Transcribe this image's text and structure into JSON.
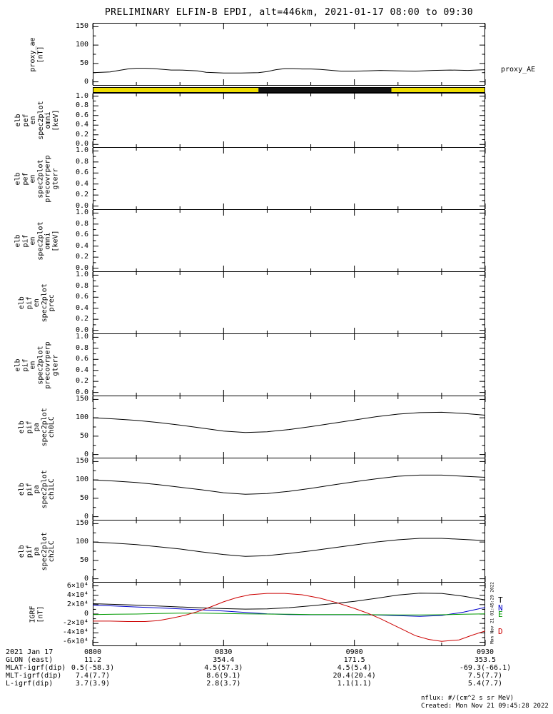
{
  "footer": {
    "units_note": "nflux: #/(cm^2 s sr MeV)",
    "created": "Created: Mon Nov 21 09:45:28 2022",
    "side_timestamp": "Mon Nov 21 01:45:29 2022"
  },
  "colors": {
    "background": "#ffffff",
    "axis": "#000000",
    "orbit_yellow": "#eedd00",
    "orbit_black": "#111111",
    "trace_T": "#000000",
    "trace_N": "#0000cc",
    "trace_E": "#009900",
    "trace_D": "#cc0000"
  },
  "chart_data": {
    "type": "line",
    "title": "PRELIMINARY ELFIN-B EPDI, alt=446km, 2021-01-17 08:00 to 09:30",
    "x_range_minutes": [
      0,
      90
    ],
    "time_ticks": {
      "labels": [
        "0800",
        "0830",
        "0900",
        "0930"
      ],
      "minutes": [
        0,
        30,
        60,
        90
      ],
      "date": "2021 Jan 17"
    },
    "panels": [
      {
        "id": "proxy_ae",
        "kind": "line",
        "ylabel_lines": [
          "proxy_ae",
          "[nT]"
        ],
        "right_label": "proxy_AE",
        "yrange": [
          0,
          150
        ],
        "yticks": [
          {
            "v": 0,
            "t": "0"
          },
          {
            "v": 50,
            "t": "50"
          },
          {
            "v": 100,
            "t": "100"
          },
          {
            "v": 150,
            "t": "150"
          }
        ],
        "series": [
          {
            "name": "proxy_AE",
            "color": "#000000",
            "x": [
              0,
              2,
              4,
              6,
              8,
              10,
              12,
              14,
              16,
              18,
              20,
              22,
              24,
              26,
              28,
              30,
              34,
              38,
              40,
              42,
              44,
              46,
              48,
              50,
              52,
              54,
              57,
              60,
              63,
              66,
              70,
              74,
              78,
              82,
              86,
              90
            ],
            "y": [
              25,
              26,
              27,
              31,
              35,
              37,
              37,
              36,
              34,
              32,
              32,
              31,
              30,
              26,
              25,
              24,
              24,
              25,
              28,
              33,
              36,
              36,
              35,
              35,
              34,
              32,
              29,
              29,
              30,
              31,
              30,
              29,
              31,
              32,
              31,
              33
            ]
          }
        ]
      },
      {
        "id": "position_bar",
        "kind": "strip",
        "segments": [
          {
            "start_min": 0,
            "end_min": 38,
            "color": "#eedd00"
          },
          {
            "start_min": 38,
            "end_min": 68.5,
            "color": "#111111"
          },
          {
            "start_min": 68.5,
            "end_min": 90,
            "color": "#eedd00"
          }
        ]
      },
      {
        "id": "pef_en_omni",
        "kind": "line",
        "ylabel_lines": [
          "elb",
          "pef",
          "en",
          "spec2plot",
          "omni",
          "[keV]"
        ],
        "yrange": [
          0,
          1
        ],
        "yticks": [
          {
            "v": 0,
            "t": "0.0"
          },
          {
            "v": 0.2,
            "t": "0.2"
          },
          {
            "v": 0.4,
            "t": "0.4"
          },
          {
            "v": 0.6,
            "t": "0.6"
          },
          {
            "v": 0.8,
            "t": "0.8"
          },
          {
            "v": 1,
            "t": "1.0"
          }
        ],
        "series": []
      },
      {
        "id": "pef_en_precovrperp_gterr",
        "kind": "line",
        "ylabel_lines": [
          "elb",
          "pef",
          "en",
          "spec2plot",
          "precovrperp",
          "gterr"
        ],
        "yrange": [
          0,
          1
        ],
        "yticks": [
          {
            "v": 0,
            "t": "0.0"
          },
          {
            "v": 0.2,
            "t": "0.2"
          },
          {
            "v": 0.4,
            "t": "0.4"
          },
          {
            "v": 0.6,
            "t": "0.6"
          },
          {
            "v": 0.8,
            "t": "0.8"
          },
          {
            "v": 1,
            "t": "1.0"
          }
        ],
        "series": []
      },
      {
        "id": "pif_en_omni",
        "kind": "line",
        "ylabel_lines": [
          "elb",
          "pif",
          "en",
          "spec2plot",
          "omni",
          "[keV]"
        ],
        "yrange": [
          0,
          1
        ],
        "yticks": [
          {
            "v": 0,
            "t": "0.0"
          },
          {
            "v": 0.2,
            "t": "0.2"
          },
          {
            "v": 0.4,
            "t": "0.4"
          },
          {
            "v": 0.6,
            "t": "0.6"
          },
          {
            "v": 0.8,
            "t": "0.8"
          },
          {
            "v": 1,
            "t": "1.0"
          }
        ],
        "series": []
      },
      {
        "id": "pif_en_prec",
        "kind": "line",
        "ylabel_lines": [
          "elb",
          "pif",
          "en",
          "spec2plot",
          "prec"
        ],
        "yrange": [
          0,
          1
        ],
        "yticks": [
          {
            "v": 0,
            "t": "0.0"
          },
          {
            "v": 0.2,
            "t": "0.2"
          },
          {
            "v": 0.4,
            "t": "0.4"
          },
          {
            "v": 0.6,
            "t": "0.6"
          },
          {
            "v": 0.8,
            "t": "0.8"
          },
          {
            "v": 1,
            "t": "1.0"
          }
        ],
        "series": []
      },
      {
        "id": "pif_en_precovrperp_gterr",
        "kind": "line",
        "ylabel_lines": [
          "elb",
          "pif",
          "en",
          "spec2plot",
          "precovrperp",
          "gterr"
        ],
        "yrange": [
          0,
          1
        ],
        "yticks": [
          {
            "v": 0,
            "t": "0.0"
          },
          {
            "v": 0.2,
            "t": "0.2"
          },
          {
            "v": 0.4,
            "t": "0.4"
          },
          {
            "v": 0.6,
            "t": "0.6"
          },
          {
            "v": 0.8,
            "t": "0.8"
          },
          {
            "v": 1,
            "t": "1.0"
          }
        ],
        "series": []
      },
      {
        "id": "pif_pa_ch0lc",
        "kind": "line",
        "ylabel_lines": [
          "elb",
          "pif",
          "pa",
          "spec2plot",
          "ch0LC"
        ],
        "yrange": [
          0,
          150
        ],
        "yticks": [
          {
            "v": 0,
            "t": "0"
          },
          {
            "v": 50,
            "t": "50"
          },
          {
            "v": 100,
            "t": "100"
          },
          {
            "v": 150,
            "t": "150"
          }
        ],
        "series": [
          {
            "name": "ch0LC",
            "color": "#000000",
            "x": [
              0,
              5,
              10,
              15,
              20,
              25,
              30,
              35,
              40,
              45,
              50,
              55,
              60,
              65,
              70,
              75,
              80,
              85,
              90
            ],
            "y": [
              100,
              97,
              93,
              87,
              80,
              72,
              64,
              60,
              62,
              68,
              76,
              85,
              94,
              103,
              110,
              114,
              115,
              112,
              107
            ]
          }
        ]
      },
      {
        "id": "pif_pa_ch1lc",
        "kind": "line",
        "ylabel_lines": [
          "elb",
          "pif",
          "pa",
          "spec2plot",
          "ch1LC"
        ],
        "yrange": [
          0,
          150
        ],
        "yticks": [
          {
            "v": 0,
            "t": "0"
          },
          {
            "v": 50,
            "t": "50"
          },
          {
            "v": 100,
            "t": "100"
          },
          {
            "v": 150,
            "t": "150"
          }
        ],
        "series": [
          {
            "name": "ch1LC",
            "color": "#000000",
            "x": [
              0,
              5,
              10,
              15,
              20,
              25,
              30,
              35,
              40,
              45,
              50,
              55,
              60,
              65,
              70,
              75,
              80,
              85,
              90
            ],
            "y": [
              100,
              97,
              93,
              87,
              80,
              73,
              65,
              61,
              63,
              69,
              77,
              86,
              95,
              103,
              110,
              113,
              113,
              110,
              107
            ]
          }
        ]
      },
      {
        "id": "pif_pa_ch2lc",
        "kind": "line",
        "ylabel_lines": [
          "elb",
          "pif",
          "pa",
          "spec2plot",
          "ch2LC"
        ],
        "yrange": [
          0,
          150
        ],
        "yticks": [
          {
            "v": 0,
            "t": "0"
          },
          {
            "v": 50,
            "t": "50"
          },
          {
            "v": 100,
            "t": "100"
          },
          {
            "v": 150,
            "t": "150"
          }
        ],
        "series": [
          {
            "name": "ch2LC",
            "color": "#000000",
            "x": [
              0,
              5,
              10,
              15,
              20,
              25,
              30,
              35,
              40,
              45,
              50,
              55,
              60,
              65,
              70,
              75,
              80,
              85,
              90
            ],
            "y": [
              100,
              97,
              93,
              87,
              81,
              73,
              66,
              61,
              63,
              69,
              76,
              84,
              92,
              100,
              106,
              110,
              110,
              107,
              104
            ]
          }
        ]
      },
      {
        "id": "igrf",
        "kind": "line",
        "ylabel_lines": [
          "IGRF",
          "[nT]"
        ],
        "yrange": [
          -60000,
          60000
        ],
        "yticks": [
          {
            "v": -60000,
            "t": "-6×10⁴"
          },
          {
            "v": -40000,
            "t": "-4×10⁴"
          },
          {
            "v": -20000,
            "t": "-2×10⁴"
          },
          {
            "v": 0,
            "t": "0"
          },
          {
            "v": 20000,
            "t": "2×10⁴"
          },
          {
            "v": 40000,
            "t": "4×10⁴"
          },
          {
            "v": 60000,
            "t": "6×10⁴"
          }
        ],
        "series": [
          {
            "name": "IGRF_T",
            "end_label": "T",
            "color": "#000000",
            "x": [
              0,
              5,
              10,
              15,
              20,
              25,
              30,
              35,
              40,
              45,
              50,
              55,
              60,
              65,
              70,
              75,
              80,
              85,
              90
            ],
            "y": [
              22000,
              20500,
              19000,
              17000,
              15000,
              13000,
              11500,
              10500,
              11000,
              13500,
              17500,
              22000,
              27000,
              33500,
              40500,
              44500,
              44000,
              38000,
              30000
            ]
          },
          {
            "name": "IGRF_N",
            "end_label": "N",
            "color": "#0000cc",
            "x": [
              0,
              5,
              10,
              15,
              20,
              25,
              30,
              35,
              40,
              45,
              50,
              55,
              60,
              65,
              70,
              75,
              80,
              85,
              90
            ],
            "y": [
              19000,
              17000,
              15000,
              13000,
              11000,
              9000,
              6500,
              3500,
              500,
              -1000,
              -1500,
              -1500,
              -1500,
              -2000,
              -3500,
              -5000,
              -3000,
              4000,
              14000
            ]
          },
          {
            "name": "IGRF_E",
            "end_label": "E",
            "color": "#009900",
            "x": [
              0,
              5,
              10,
              15,
              20,
              25,
              30,
              35,
              40,
              45,
              50,
              55,
              60,
              65,
              70,
              75,
              80,
              85,
              90
            ],
            "y": [
              -1000,
              -500,
              0,
              1000,
              2000,
              2000,
              1000,
              500,
              0,
              -500,
              -1000,
              -1000,
              -1000,
              -1500,
              -2000,
              -2000,
              -1500,
              -500,
              500
            ]
          },
          {
            "name": "IGRF_D",
            "end_label": "D",
            "color": "#cc0000",
            "x": [
              0,
              4,
              8,
              12,
              15,
              18,
              21,
              24,
              27,
              30,
              33,
              36,
              40,
              44,
              48,
              52,
              56,
              60,
              63,
              66,
              70,
              74,
              77,
              80,
              84,
              87,
              90
            ],
            "y": [
              -15000,
              -15000,
              -16000,
              -16000,
              -14000,
              -9000,
              -3000,
              5000,
              15000,
              26000,
              35000,
              41000,
              44000,
              44000,
              41000,
              34000,
              24000,
              12000,
              2000,
              -10000,
              -28000,
              -46000,
              -54000,
              -58000,
              -55000,
              -45000,
              -36000
            ]
          }
        ]
      }
    ],
    "annotation_rows": [
      {
        "label": "2021 Jan 17",
        "values": [
          "0800",
          "0830",
          "0900",
          "0930"
        ]
      },
      {
        "label": "GLON (east)",
        "values": [
          "11.2",
          "354.4",
          "171.5",
          "353.5"
        ]
      },
      {
        "label": "MLAT-igrf(dip)",
        "values": [
          "0.5(-58.3)",
          "4.5(57.3)",
          "4.5(5.4)",
          "-69.3(-66.1)"
        ]
      },
      {
        "label": "MLT-igrf(dip)",
        "values": [
          "7.4(7.7)",
          "8.6(9.1)",
          "20.4(20.4)",
          "7.5(7.7)"
        ]
      },
      {
        "label": "L-igrf(dip)",
        "values": [
          "3.7(3.9)",
          "2.8(3.7)",
          "1.1(1.1)",
          "5.4(7.7)"
        ]
      }
    ]
  }
}
